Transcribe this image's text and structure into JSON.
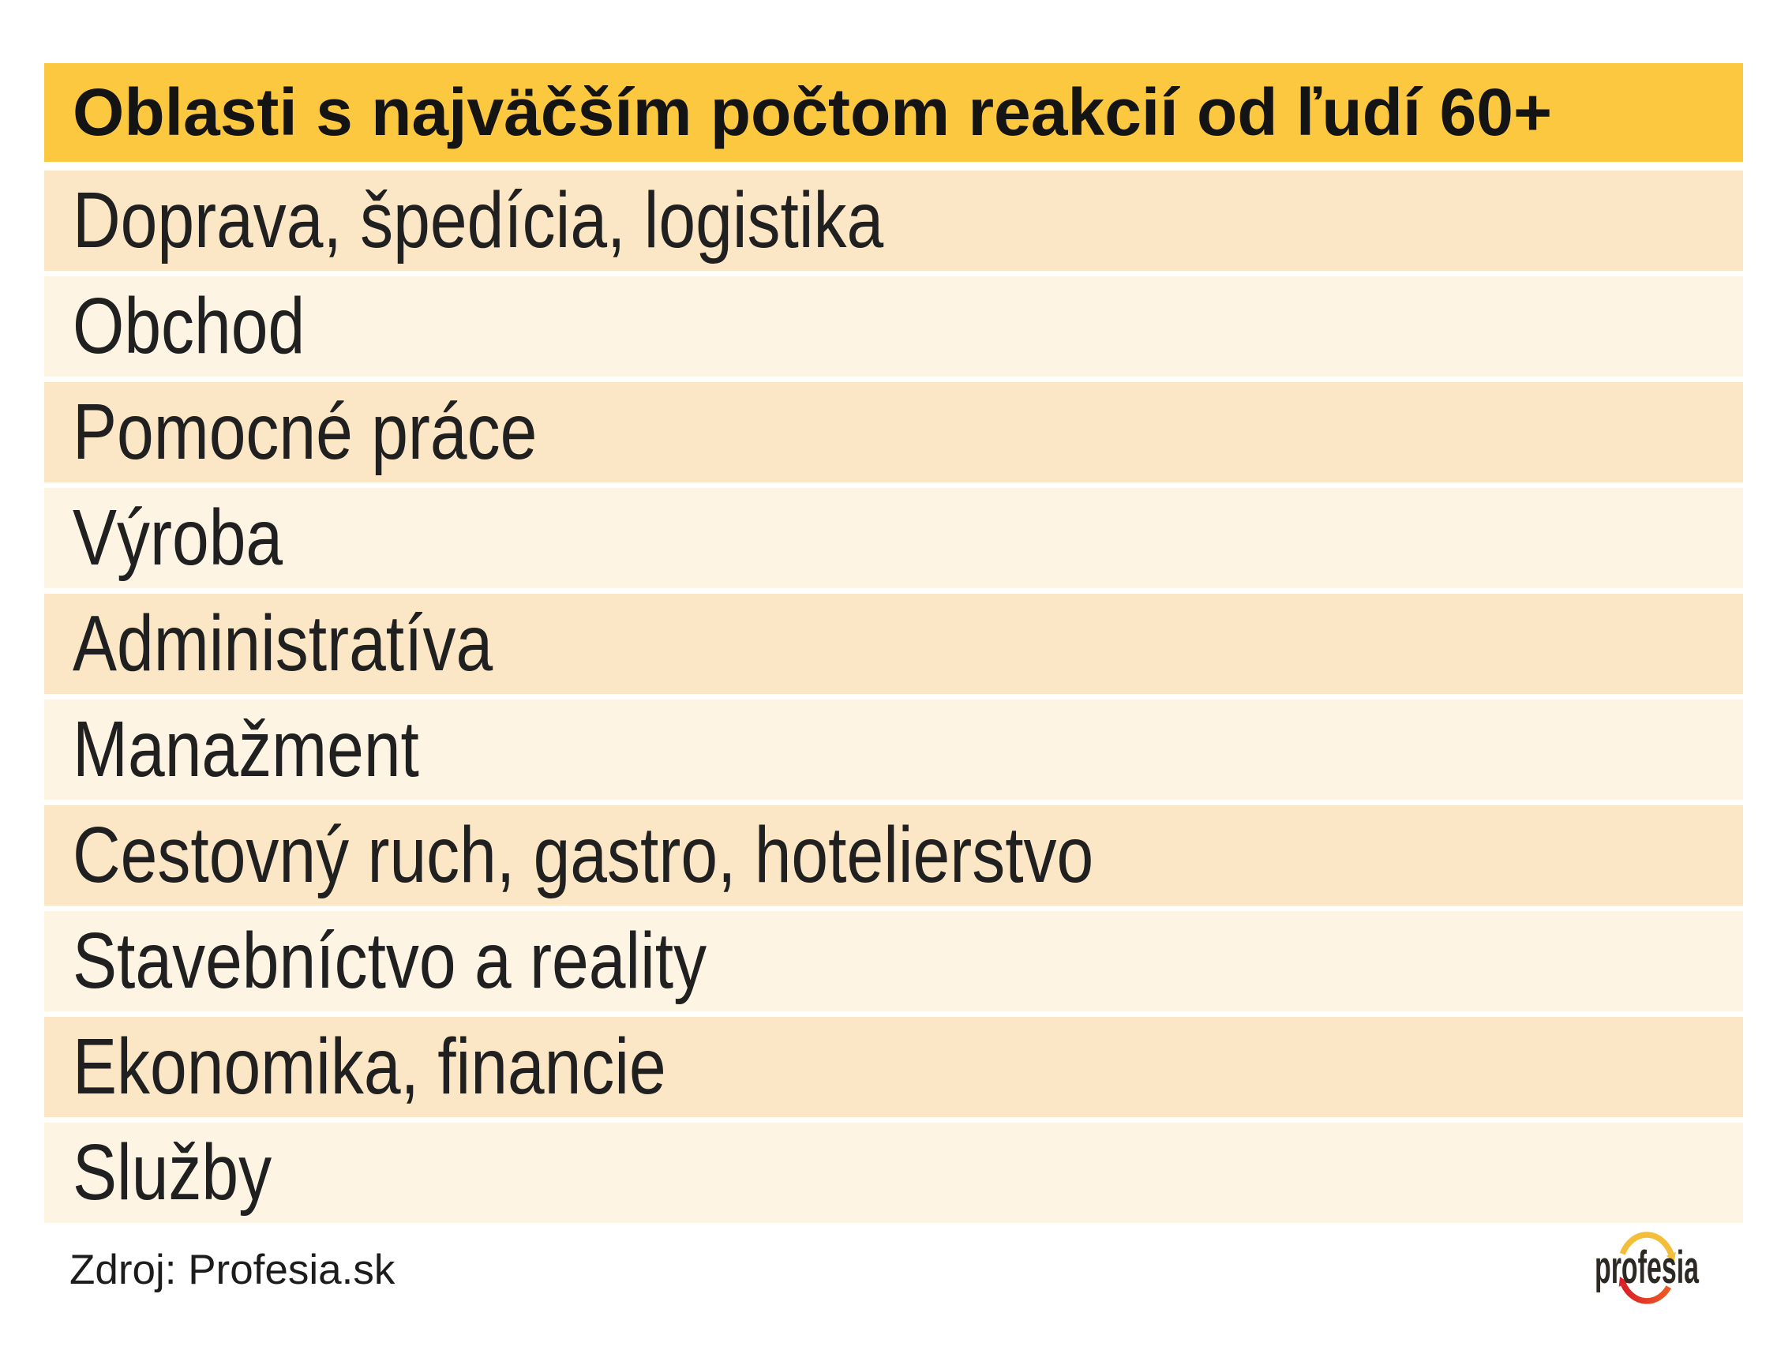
{
  "header": {
    "title": "Oblasti s najväčším počtom reakcií od ľudí 60+",
    "background": "#FCC840",
    "text_color": "#141414"
  },
  "rows": [
    "Doprava, špedícia, logistika",
    "Obchod",
    "Pomocné práce",
    "Výroba",
    "Administratíva",
    "Manažment",
    "Cestovný ruch, gastro, hotelierstvo",
    "Stavebníctvo a reality",
    "Ekonomika, financie",
    "Služby"
  ],
  "row_colors": {
    "odd": "#FBE7C6",
    "even": "#FDF4E4"
  },
  "footer": {
    "source": "Zdroj: Profesia.sk",
    "logo_text": "profesia",
    "logo_colors": {
      "arc_top": "#F3BE39",
      "arc_bottom_start": "#DA1F26",
      "arc_bottom_end": "#EF5A24",
      "text": "#2D2A26"
    }
  },
  "chart_data": {
    "type": "table",
    "title": "Oblasti s najväčším počtom reakcií od ľudí 60+",
    "categories": [
      "Doprava, špedícia, logistika",
      "Obchod",
      "Pomocné práce",
      "Výroba",
      "Administratíva",
      "Manažment",
      "Cestovný ruch, gastro, hotelierstvo",
      "Stavebníctvo a reality",
      "Ekonomika, financie",
      "Služby"
    ],
    "values": null,
    "source": "Zdroj: Profesia.sk",
    "legend_position": "none",
    "grid": false
  }
}
